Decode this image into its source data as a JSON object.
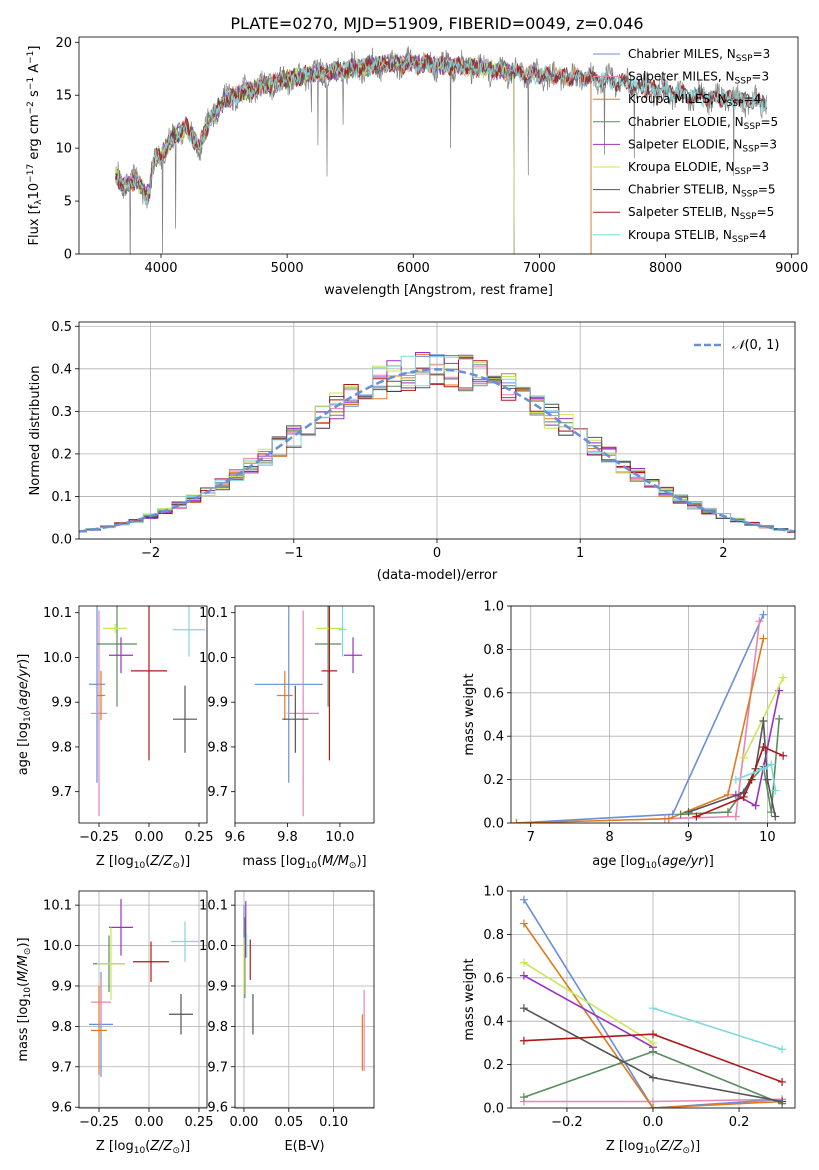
{
  "figure_title": "PLATE=0270, MJD=51909, FIBERID=0049, z=0.046",
  "colors": {
    "Chabrier MILES": "#6a8fd8",
    "Salpeter MILES": "#e884b4",
    "Kroupa MILES": "#e07a1f",
    "Chabrier ELODIE": "#5a8c5e",
    "Salpeter ELODIE": "#9b30c4",
    "Kroupa ELODIE": "#c8e65a",
    "Chabrier STELIB": "#555555",
    "Salpeter STELIB": "#b01818",
    "Kroupa STELIB": "#7fd8dc"
  },
  "chart_data": [
    {
      "type": "line",
      "title": "PLATE=0270, MJD=51909, FIBERID=0049, z=0.046",
      "xlabel": "wavelength [Angstrom, rest frame]",
      "ylabel": "Flux [fλ10⁻¹⁷ erg cm⁻² s⁻¹ A⁻¹]",
      "xlim": [
        3350,
        9050
      ],
      "ylim": [
        0,
        20.5
      ],
      "xticks": [
        4000,
        5000,
        6000,
        7000,
        8000,
        9000
      ],
      "yticks": [
        0,
        5,
        10,
        15,
        20
      ],
      "grid": false,
      "legend_position": "top-right",
      "legend": [
        {
          "label": "Chabrier MILES, N",
          "sub": "SSP",
          "val": "=3",
          "key": "Chabrier MILES"
        },
        {
          "label": "Salpeter MILES, N",
          "sub": "SSP",
          "val": "=3",
          "key": "Salpeter MILES"
        },
        {
          "label": "Kroupa MILES, N",
          "sub": "SSP",
          "val": "=4",
          "key": "Kroupa MILES"
        },
        {
          "label": "Chabrier ELODIE, N",
          "sub": "SSP",
          "val": "=5",
          "key": "Chabrier ELODIE"
        },
        {
          "label": "Salpeter ELODIE, N",
          "sub": "SSP",
          "val": "=3",
          "key": "Salpeter ELODIE"
        },
        {
          "label": "Kroupa ELODIE, N",
          "sub": "SSP",
          "val": "=3",
          "key": "Kroupa ELODIE"
        },
        {
          "label": "Chabrier STELIB, N",
          "sub": "SSP",
          "val": "=5",
          "key": "Chabrier STELIB"
        },
        {
          "label": "Salpeter STELIB, N",
          "sub": "SSP",
          "val": "=5",
          "key": "Salpeter STELIB"
        },
        {
          "label": "Kroupa STELIB, N",
          "sub": "SSP",
          "val": "=4",
          "key": "Kroupa STELIB"
        }
      ],
      "continuum": {
        "x": [
          3640,
          3700,
          3800,
          3900,
          3950,
          4000,
          4100,
          4200,
          4300,
          4400,
          4500,
          4700,
          5000,
          5200,
          5500,
          5800,
          6000,
          6300,
          6600,
          6900,
          7200,
          7500,
          7800,
          8200,
          8500,
          8800
        ],
        "y": [
          7.5,
          6.5,
          7.0,
          5.5,
          9.0,
          9.5,
          11.0,
          12.0,
          10.0,
          13.0,
          14.5,
          15.5,
          16.5,
          17.0,
          17.5,
          18.0,
          18.0,
          17.8,
          17.5,
          17.0,
          16.8,
          16.5,
          15.8,
          15.0,
          14.6,
          14.3
        ]
      },
      "model_ranges": {
        "Chabrier MILES": [
          3640,
          7410
        ],
        "Salpeter MILES": [
          3640,
          7410
        ],
        "Kroupa MILES": [
          3640,
          7410
        ],
        "Chabrier ELODIE": [
          3640,
          6800
        ],
        "Salpeter ELODIE": [
          3640,
          6800
        ],
        "Kroupa ELODIE": [
          3640,
          6800
        ],
        "Chabrier STELIB": [
          3640,
          8800
        ],
        "Salpeter STELIB": [
          3640,
          8800
        ],
        "Kroupa STELIB": [
          3640,
          8800
        ]
      }
    },
    {
      "type": "histogram",
      "xlabel": "(data-model)/error",
      "ylabel": "Normed distribution",
      "xlim": [
        -2.5,
        2.5
      ],
      "ylim": [
        0,
        0.51
      ],
      "xticks": [
        -2,
        -1,
        0,
        1,
        2
      ],
      "yticks": [
        0.0,
        0.1,
        0.2,
        0.3,
        0.4,
        0.5
      ],
      "grid": true,
      "legend_position": "top-right",
      "legend_label": "N(0,1)",
      "bin_width": 0.1
    },
    {
      "type": "scatter",
      "xlabel": "Z [log10(Z/Z⊙)]",
      "ylabel": "age  [log10(age/yr)]",
      "xlim": [
        -0.35,
        0.29
      ],
      "ylim": [
        9.63,
        10.115
      ],
      "xticks": [
        -0.25,
        0.0,
        0.25
      ],
      "yticks": [
        9.7,
        9.8,
        9.9,
        10.0,
        10.1
      ],
      "grid": false,
      "points": [
        {
          "key": "Chabrier MILES",
          "x": -0.26,
          "y": 9.94,
          "xerr": 0.04,
          "yerr": 0.22
        },
        {
          "key": "Salpeter MILES",
          "x": -0.25,
          "y": 9.875,
          "xerr": 0.04,
          "yerr": 0.23
        },
        {
          "key": "Kroupa MILES",
          "x": -0.24,
          "y": 9.915,
          "xerr": 0.02,
          "yerr": 0.055
        },
        {
          "key": "Chabrier ELODIE",
          "x": -0.16,
          "y": 10.03,
          "xerr": 0.1,
          "yerr": 0.14
        },
        {
          "key": "Salpeter ELODIE",
          "x": -0.14,
          "y": 10.005,
          "xerr": 0.06,
          "yerr": 0.04
        },
        {
          "key": "Kroupa ELODIE",
          "x": -0.17,
          "y": 10.065,
          "xerr": 0.06,
          "yerr": 0.01
        },
        {
          "key": "Chabrier STELIB",
          "x": 0.18,
          "y": 9.862,
          "xerr": 0.06,
          "yerr": 0.075
        },
        {
          "key": "Salpeter STELIB",
          "x": 0.0,
          "y": 9.97,
          "xerr": 0.09,
          "yerr": 0.2
        },
        {
          "key": "Kroupa STELIB",
          "x": 0.2,
          "y": 10.062,
          "xerr": 0.08,
          "yerr": 0.06
        }
      ]
    },
    {
      "type": "scatter",
      "xlabel": "mass [log10(M/M⊙)]",
      "xlim": [
        9.6,
        10.13
      ],
      "ylim": [
        9.63,
        10.115
      ],
      "xticks": [
        9.6,
        9.8,
        10.0
      ],
      "yticks": [
        9.7,
        9.8,
        9.9,
        10.0,
        10.1
      ],
      "grid": false,
      "points": [
        {
          "key": "Chabrier MILES",
          "x": 9.805,
          "y": 9.94,
          "xerr": 0.13,
          "yerr": 0.22
        },
        {
          "key": "Salpeter MILES",
          "x": 9.86,
          "y": 9.875,
          "xerr": 0.06,
          "yerr": 0.23
        },
        {
          "key": "Kroupa MILES",
          "x": 9.79,
          "y": 9.915,
          "xerr": 0.03,
          "yerr": 0.055
        },
        {
          "key": "Chabrier ELODIE",
          "x": 9.955,
          "y": 10.03,
          "xerr": 0.05,
          "yerr": 0.14
        },
        {
          "key": "Salpeter ELODIE",
          "x": 10.05,
          "y": 10.005,
          "xerr": 0.035,
          "yerr": 0.04
        },
        {
          "key": "Kroupa ELODIE",
          "x": 9.96,
          "y": 10.065,
          "xerr": 0.05,
          "yerr": 0.01
        },
        {
          "key": "Chabrier STELIB",
          "x": 9.83,
          "y": 9.862,
          "xerr": 0.05,
          "yerr": 0.075
        },
        {
          "key": "Salpeter STELIB",
          "x": 9.96,
          "y": 9.97,
          "xerr": 0.03,
          "yerr": 0.2
        },
        {
          "key": "Kroupa STELIB",
          "x": 10.01,
          "y": 10.062,
          "xerr": 0.015,
          "yerr": 0.06
        }
      ]
    },
    {
      "type": "line",
      "xlabel": "age  [log10(age/yr)]",
      "ylabel": "mass weight",
      "xlim": [
        6.75,
        10.35
      ],
      "ylim": [
        0,
        1.0
      ],
      "xticks": [
        7,
        8,
        9,
        10
      ],
      "yticks": [
        0.0,
        0.2,
        0.4,
        0.6,
        0.8,
        1.0
      ],
      "grid": true,
      "series": [
        {
          "key": "Chabrier MILES",
          "x": [
            6.82,
            8.8,
            9.95
          ],
          "y": [
            0.0,
            0.04,
            0.96
          ]
        },
        {
          "key": "Salpeter MILES",
          "x": [
            8.7,
            9.6,
            9.9
          ],
          "y": [
            0.02,
            0.03,
            0.93
          ]
        },
        {
          "key": "Kroupa MILES",
          "x": [
            6.82,
            8.75,
            9.5,
            9.95
          ],
          "y": [
            0.0,
            0.02,
            0.13,
            0.85
          ]
        },
        {
          "key": "Chabrier ELODIE",
          "x": [
            8.9,
            9.5,
            9.8,
            9.95,
            10.05,
            10.15
          ],
          "y": [
            0.04,
            0.05,
            0.2,
            0.26,
            0.05,
            0.48
          ]
        },
        {
          "key": "Salpeter ELODIE",
          "x": [
            9.6,
            9.85,
            10.15
          ],
          "y": [
            0.13,
            0.08,
            0.61
          ]
        },
        {
          "key": "Kroupa ELODIE",
          "x": [
            9.7,
            10.2
          ],
          "y": [
            0.3,
            0.67
          ]
        },
        {
          "key": "Chabrier STELIB",
          "x": [
            9.0,
            9.7,
            9.85,
            9.95,
            10.0,
            10.1
          ],
          "y": [
            0.05,
            0.14,
            0.25,
            0.47,
            0.2,
            0.03
          ]
        },
        {
          "key": "Salpeter STELIB",
          "x": [
            9.1,
            9.7,
            9.8,
            9.95,
            10.2
          ],
          "y": [
            0.03,
            0.12,
            0.2,
            0.35,
            0.31
          ]
        },
        {
          "key": "Kroupa STELIB",
          "x": [
            9.6,
            9.95,
            10.05,
            10.1
          ],
          "y": [
            0.2,
            0.25,
            0.27,
            0.15
          ]
        }
      ]
    },
    {
      "type": "scatter",
      "xlabel": "Z [log10(Z/Z⊙)]",
      "ylabel": "mass [log10(M/M⊙)]",
      "xlim": [
        -0.35,
        0.29
      ],
      "ylim": [
        9.598,
        10.135
      ],
      "xticks": [
        -0.25,
        0.0,
        0.25
      ],
      "yticks": [
        9.6,
        9.7,
        9.8,
        9.9,
        10.0,
        10.1
      ],
      "grid": true,
      "points": [
        {
          "key": "Chabrier MILES",
          "x": -0.24,
          "y": 9.805,
          "xerr": 0.06,
          "yerr": 0.13
        },
        {
          "key": "Salpeter MILES",
          "x": -0.24,
          "y": 9.86,
          "xerr": 0.05,
          "yerr": 0.06
        },
        {
          "key": "Kroupa MILES",
          "x": -0.25,
          "y": 9.79,
          "xerr": 0.04,
          "yerr": 0.11
        },
        {
          "key": "Chabrier ELODIE",
          "x": -0.2,
          "y": 9.955,
          "xerr": 0.08,
          "yerr": 0.07
        },
        {
          "key": "Salpeter ELODIE",
          "x": -0.14,
          "y": 10.045,
          "xerr": 0.06,
          "yerr": 0.07
        },
        {
          "key": "Kroupa ELODIE",
          "x": -0.19,
          "y": 9.955,
          "xerr": 0.07,
          "yerr": 0.09
        },
        {
          "key": "Chabrier STELIB",
          "x": 0.16,
          "y": 9.83,
          "xerr": 0.06,
          "yerr": 0.05
        },
        {
          "key": "Salpeter STELIB",
          "x": 0.01,
          "y": 9.96,
          "xerr": 0.09,
          "yerr": 0.05
        },
        {
          "key": "Kroupa STELIB",
          "x": 0.18,
          "y": 10.01,
          "xerr": 0.07,
          "yerr": 0.05
        }
      ]
    },
    {
      "type": "scatter",
      "xlabel": "E(B-V)",
      "xlim": [
        -0.01,
        0.145
      ],
      "ylim": [
        9.598,
        10.135
      ],
      "xticks": [
        0.0,
        0.05,
        0.1
      ],
      "yticks": [
        9.6,
        9.7,
        9.8,
        9.9,
        10.0,
        10.1
      ],
      "grid": true,
      "points": [
        {
          "key": "Chabrier MILES",
          "x": 0.0,
          "y": 10.05,
          "xerr": 0.0,
          "yerr": 0.05
        },
        {
          "key": "Salpeter MILES",
          "x": 0.134,
          "y": 9.79,
          "xerr": 0.0,
          "yerr": 0.1
        },
        {
          "key": "Kroupa MILES",
          "x": 0.132,
          "y": 9.76,
          "xerr": 0.0,
          "yerr": 0.07
        },
        {
          "key": "Chabrier ELODIE",
          "x": 0.001,
          "y": 9.97,
          "xerr": 0.0,
          "yerr": 0.1
        },
        {
          "key": "Salpeter ELODIE",
          "x": 0.002,
          "y": 10.04,
          "xerr": 0.0,
          "yerr": 0.07
        },
        {
          "key": "Kroupa ELODIE",
          "x": 0.0,
          "y": 9.95,
          "xerr": 0.0,
          "yerr": 0.07
        },
        {
          "key": "Chabrier STELIB",
          "x": 0.01,
          "y": 9.83,
          "xerr": 0.0,
          "yerr": 0.05
        },
        {
          "key": "Salpeter STELIB",
          "x": 0.007,
          "y": 9.965,
          "xerr": 0.0,
          "yerr": 0.05
        },
        {
          "key": "Kroupa STELIB",
          "x": 0.003,
          "y": 10.0,
          "xerr": 0.0,
          "yerr": 0.03
        }
      ]
    },
    {
      "type": "line",
      "xlabel": "Z [log10(Z/Z⊙)]",
      "ylabel": "mass weight",
      "xlim": [
        -0.33,
        0.33
      ],
      "ylim": [
        0,
        1.0
      ],
      "xticks": [
        -0.2,
        0.0,
        0.2
      ],
      "yticks": [
        0.0,
        0.2,
        0.4,
        0.6,
        0.8,
        1.0
      ],
      "grid": true,
      "series": [
        {
          "key": "Chabrier MILES",
          "x": [
            -0.3,
            0.0,
            0.3
          ],
          "y": [
            0.96,
            0.0,
            0.04
          ]
        },
        {
          "key": "Salpeter MILES",
          "x": [
            -0.3,
            0.0,
            0.3
          ],
          "y": [
            0.03,
            0.03,
            0.04
          ]
        },
        {
          "key": "Kroupa MILES",
          "x": [
            -0.3,
            0.0,
            0.3
          ],
          "y": [
            0.85,
            0.0,
            0.03
          ]
        },
        {
          "key": "Chabrier ELODIE",
          "x": [
            -0.3,
            0.0,
            0.3
          ],
          "y": [
            0.05,
            0.26,
            0.02
          ]
        },
        {
          "key": "Salpeter ELODIE",
          "x": [
            -0.3,
            0.0
          ],
          "y": [
            0.61,
            0.28
          ]
        },
        {
          "key": "Kroupa ELODIE",
          "x": [
            -0.3,
            0.0
          ],
          "y": [
            0.67,
            0.3
          ]
        },
        {
          "key": "Chabrier STELIB",
          "x": [
            -0.3,
            0.0,
            0.3
          ],
          "y": [
            0.46,
            0.14,
            0.03
          ]
        },
        {
          "key": "Salpeter STELIB",
          "x": [
            -0.3,
            0.0,
            0.3
          ],
          "y": [
            0.31,
            0.34,
            0.12
          ]
        },
        {
          "key": "Kroupa STELIB",
          "x": [
            0.0,
            0.3
          ],
          "y": [
            0.46,
            0.27
          ]
        }
      ]
    }
  ]
}
